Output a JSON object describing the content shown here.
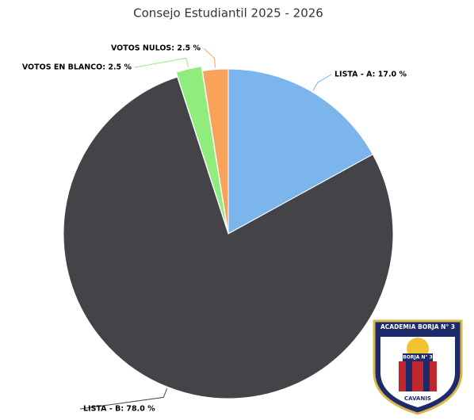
{
  "chart_data": {
    "type": "pie",
    "title": "Consejo Estudiantil 2025 - 2026",
    "categories": [
      "LISTA - A",
      "LISTA - B",
      "VOTOS EN BLANCO",
      "VOTOS NULOS"
    ],
    "values": [
      17.0,
      78.0,
      2.5,
      2.5
    ],
    "value_labels": [
      "LISTA - A: 17.0 %",
      "LISTA - B: 78.0 %",
      "VOTOS EN BLANCO: 2.5 %",
      "VOTOS NULOS: 2.5 %"
    ],
    "colors": [
      "#7cb5ec",
      "#434348",
      "#90ed7d",
      "#f7a35c"
    ]
  },
  "logo": {
    "top": "ACADEMIA BORJA N° 3",
    "middle": "BORJA N° 3",
    "bottom": "CAVANIS"
  }
}
